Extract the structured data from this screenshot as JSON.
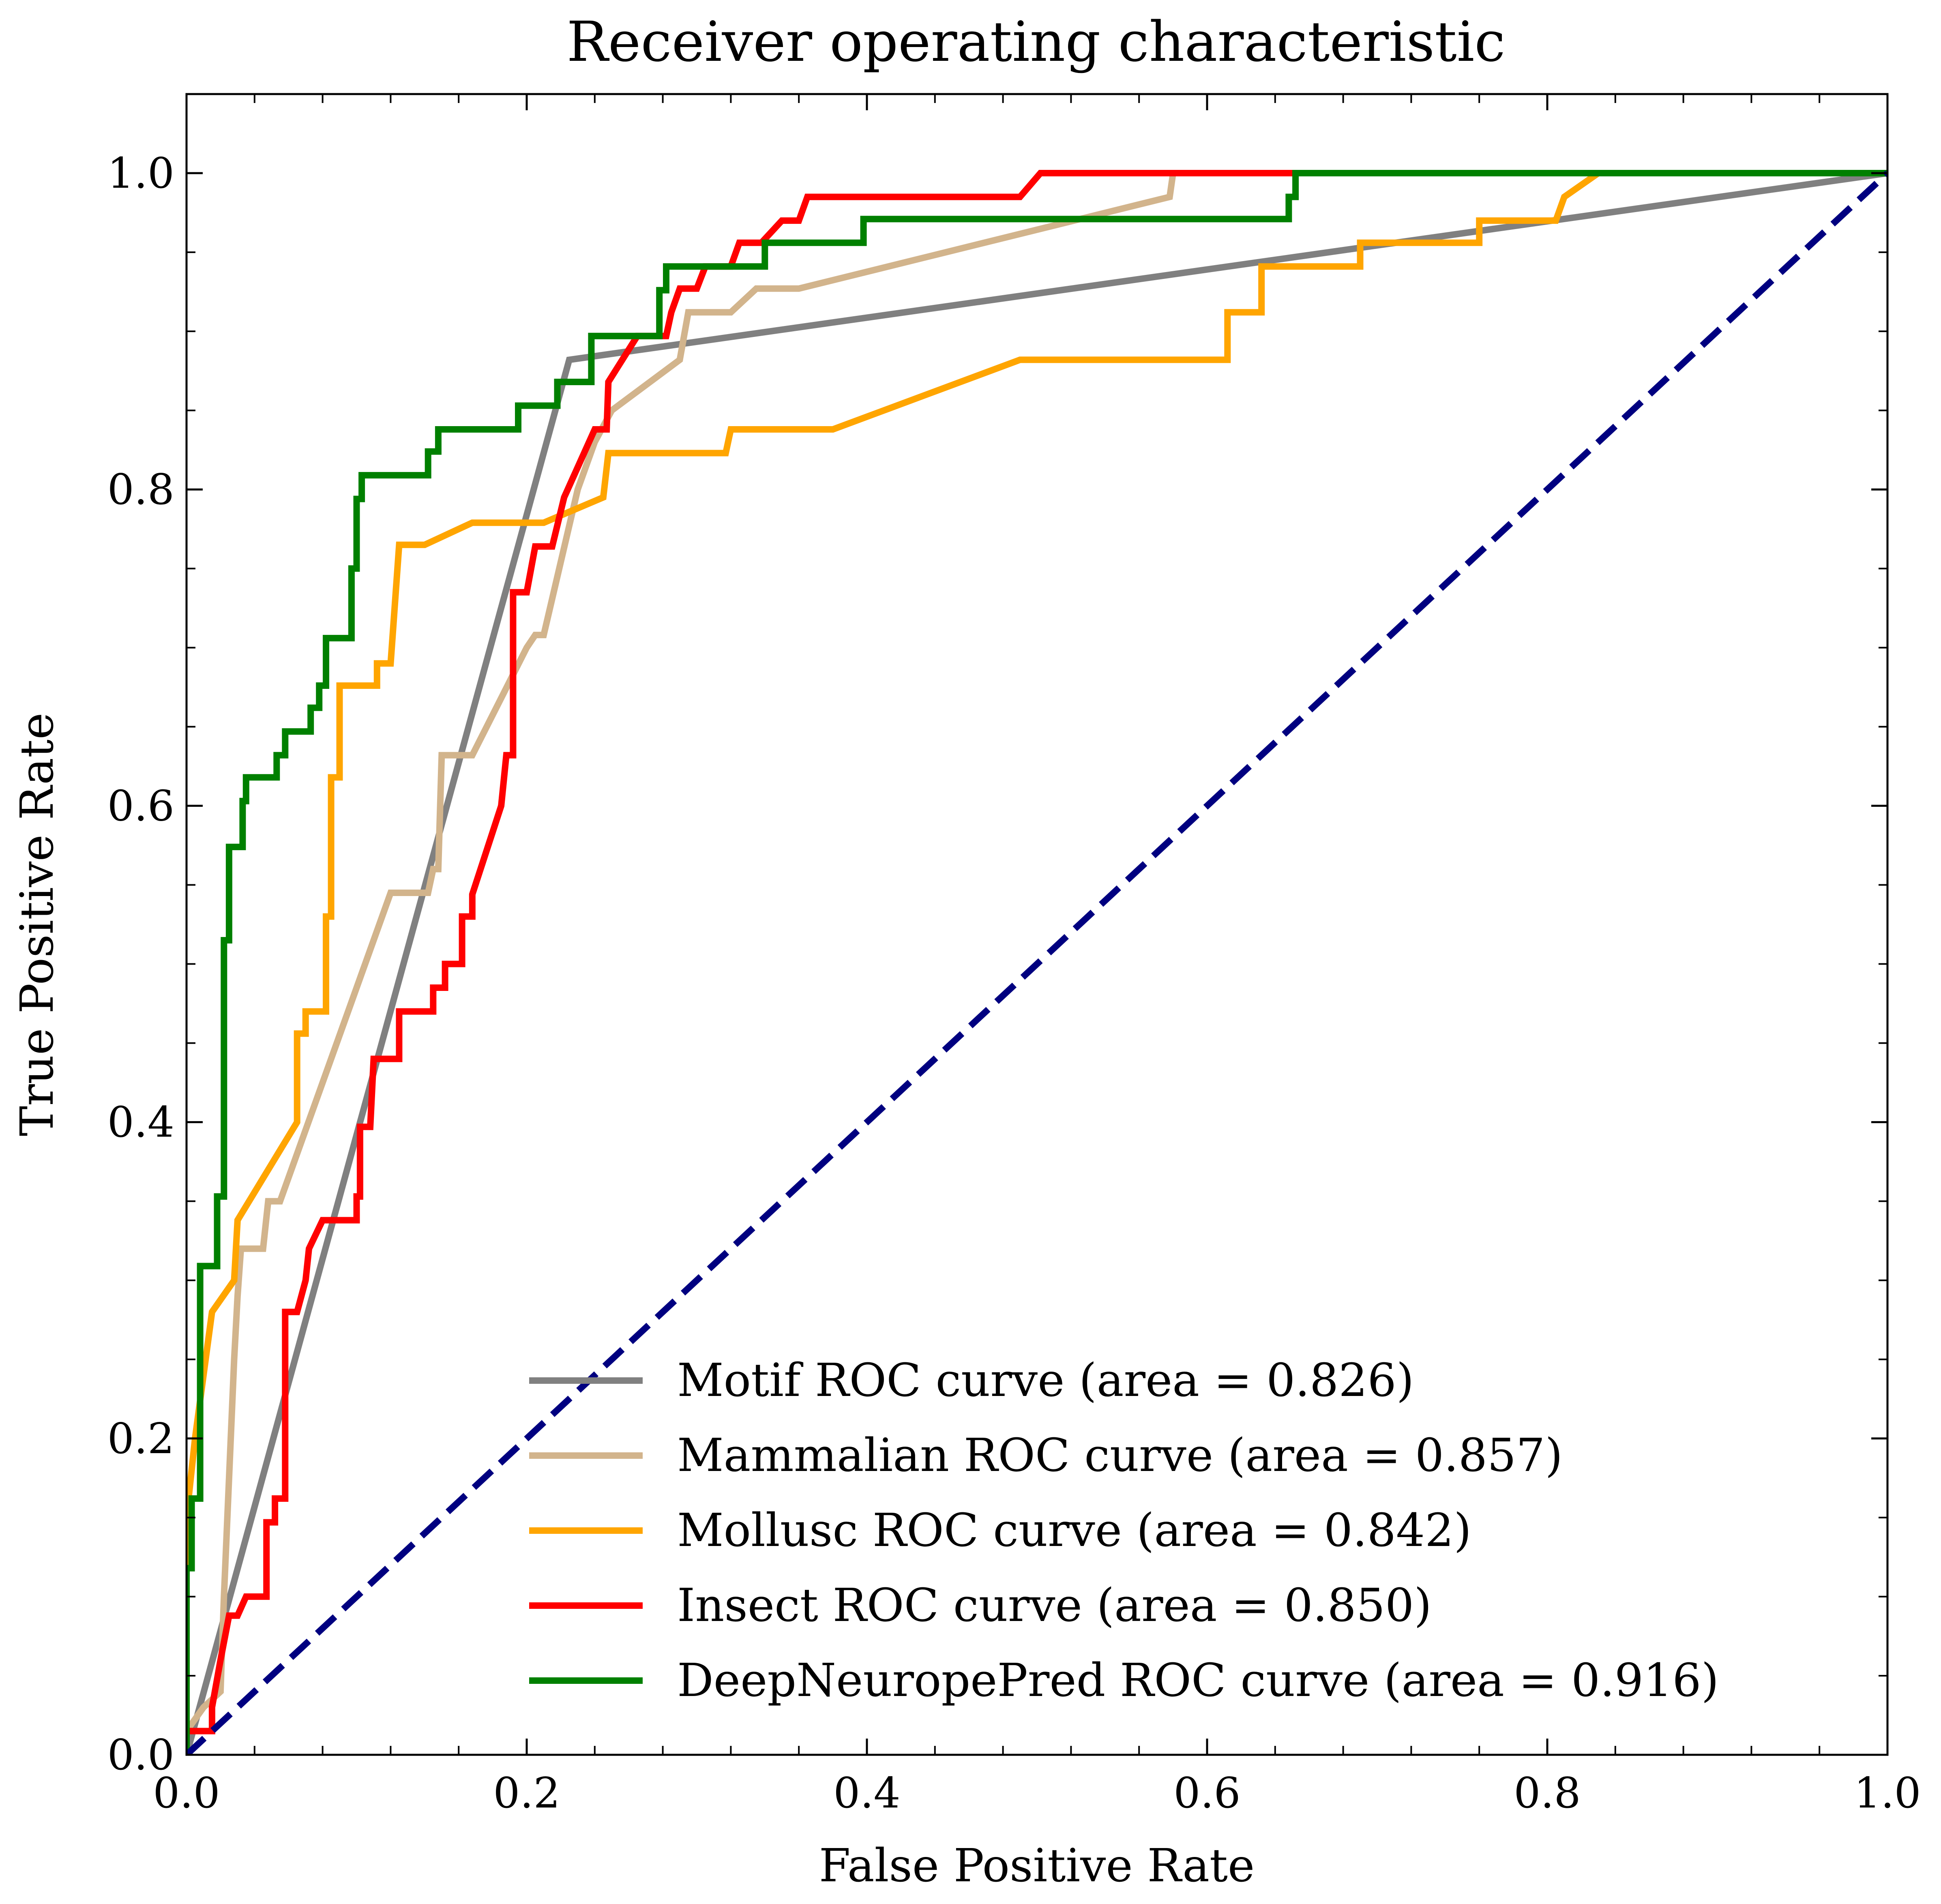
{
  "chart_data": {
    "type": "line",
    "title": "Receiver operating characteristic",
    "xlabel": "False Positive Rate",
    "ylabel": "True Positive Rate",
    "xlim": [
      0.0,
      1.0
    ],
    "ylim": [
      0.0,
      1.05
    ],
    "x_ticks": [
      0.0,
      0.2,
      0.4,
      0.6,
      0.8,
      1.0
    ],
    "y_ticks": [
      0.0,
      0.2,
      0.4,
      0.6,
      0.8,
      1.0
    ],
    "x_tick_labels": [
      "0.0",
      "0.2",
      "0.4",
      "0.6",
      "0.8",
      "1.0"
    ],
    "y_tick_labels": [
      "0.0",
      "0.2",
      "0.4",
      "0.6",
      "0.8",
      "1.0"
    ],
    "grid": false,
    "legend_position": "lower-right",
    "series": [
      {
        "name": "Motif ROC curve (area = 0.826)",
        "color": "#808080",
        "style": "solid",
        "points": [
          [
            0.0,
            0.0
          ],
          [
            0.225,
            0.882
          ],
          [
            1.0,
            1.0
          ]
        ]
      },
      {
        "name": "Mammalian ROC curve (area = 0.857)",
        "color": "#d2b48c",
        "style": "solid",
        "points": [
          [
            0.0,
            0.0
          ],
          [
            0.0,
            0.015
          ],
          [
            0.01,
            0.03
          ],
          [
            0.02,
            0.04
          ],
          [
            0.022,
            0.1
          ],
          [
            0.028,
            0.25
          ],
          [
            0.03,
            0.29
          ],
          [
            0.032,
            0.32
          ],
          [
            0.045,
            0.32
          ],
          [
            0.048,
            0.35
          ],
          [
            0.055,
            0.35
          ],
          [
            0.12,
            0.545
          ],
          [
            0.142,
            0.545
          ],
          [
            0.145,
            0.56
          ],
          [
            0.148,
            0.56
          ],
          [
            0.15,
            0.632
          ],
          [
            0.168,
            0.632
          ],
          [
            0.2,
            0.7
          ],
          [
            0.205,
            0.708
          ],
          [
            0.21,
            0.708
          ],
          [
            0.23,
            0.8
          ],
          [
            0.24,
            0.83
          ],
          [
            0.25,
            0.85
          ],
          [
            0.29,
            0.882
          ],
          [
            0.295,
            0.912
          ],
          [
            0.32,
            0.912
          ],
          [
            0.335,
            0.927
          ],
          [
            0.36,
            0.927
          ],
          [
            0.578,
            0.985
          ],
          [
            0.58,
            1.0
          ],
          [
            1.0,
            1.0
          ]
        ]
      },
      {
        "name": "Mollusc ROC curve (area = 0.842)",
        "color": "#ffa500",
        "style": "solid",
        "points": [
          [
            0.0,
            0.0
          ],
          [
            0.0,
            0.15
          ],
          [
            0.005,
            0.2
          ],
          [
            0.015,
            0.28
          ],
          [
            0.028,
            0.3
          ],
          [
            0.03,
            0.338
          ],
          [
            0.065,
            0.4
          ],
          [
            0.065,
            0.456
          ],
          [
            0.07,
            0.456
          ],
          [
            0.07,
            0.47
          ],
          [
            0.082,
            0.47
          ],
          [
            0.082,
            0.53
          ],
          [
            0.085,
            0.53
          ],
          [
            0.085,
            0.618
          ],
          [
            0.09,
            0.618
          ],
          [
            0.09,
            0.676
          ],
          [
            0.112,
            0.676
          ],
          [
            0.112,
            0.69
          ],
          [
            0.12,
            0.69
          ],
          [
            0.125,
            0.765
          ],
          [
            0.14,
            0.765
          ],
          [
            0.168,
            0.779
          ],
          [
            0.21,
            0.779
          ],
          [
            0.245,
            0.795
          ],
          [
            0.248,
            0.823
          ],
          [
            0.317,
            0.823
          ],
          [
            0.32,
            0.838
          ],
          [
            0.38,
            0.838
          ],
          [
            0.49,
            0.882
          ],
          [
            0.612,
            0.882
          ],
          [
            0.612,
            0.912
          ],
          [
            0.632,
            0.912
          ],
          [
            0.632,
            0.941
          ],
          [
            0.69,
            0.941
          ],
          [
            0.69,
            0.956
          ],
          [
            0.76,
            0.956
          ],
          [
            0.76,
            0.97
          ],
          [
            0.805,
            0.97
          ],
          [
            0.81,
            0.985
          ],
          [
            0.83,
            1.0
          ],
          [
            1.0,
            1.0
          ]
        ]
      },
      {
        "name": "Insect ROC curve (area = 0.850)",
        "color": "#ff0000",
        "style": "solid",
        "points": [
          [
            0.0,
            0.0
          ],
          [
            0.0,
            0.015
          ],
          [
            0.015,
            0.015
          ],
          [
            0.015,
            0.03
          ],
          [
            0.02,
            0.06
          ],
          [
            0.025,
            0.088
          ],
          [
            0.03,
            0.088
          ],
          [
            0.035,
            0.1
          ],
          [
            0.047,
            0.1
          ],
          [
            0.047,
            0.147
          ],
          [
            0.052,
            0.147
          ],
          [
            0.052,
            0.162
          ],
          [
            0.058,
            0.162
          ],
          [
            0.058,
            0.28
          ],
          [
            0.065,
            0.28
          ],
          [
            0.07,
            0.3
          ],
          [
            0.072,
            0.32
          ],
          [
            0.08,
            0.338
          ],
          [
            0.1,
            0.338
          ],
          [
            0.1,
            0.353
          ],
          [
            0.102,
            0.353
          ],
          [
            0.102,
            0.397
          ],
          [
            0.108,
            0.397
          ],
          [
            0.11,
            0.44
          ],
          [
            0.125,
            0.44
          ],
          [
            0.125,
            0.47
          ],
          [
            0.145,
            0.47
          ],
          [
            0.145,
            0.485
          ],
          [
            0.152,
            0.485
          ],
          [
            0.152,
            0.5
          ],
          [
            0.162,
            0.5
          ],
          [
            0.162,
            0.53
          ],
          [
            0.168,
            0.53
          ],
          [
            0.168,
            0.544
          ],
          [
            0.185,
            0.6
          ],
          [
            0.188,
            0.632
          ],
          [
            0.192,
            0.632
          ],
          [
            0.192,
            0.735
          ],
          [
            0.2,
            0.735
          ],
          [
            0.205,
            0.764
          ],
          [
            0.215,
            0.764
          ],
          [
            0.222,
            0.795
          ],
          [
            0.24,
            0.838
          ],
          [
            0.247,
            0.838
          ],
          [
            0.248,
            0.868
          ],
          [
            0.265,
            0.897
          ],
          [
            0.282,
            0.897
          ],
          [
            0.285,
            0.912
          ],
          [
            0.29,
            0.927
          ],
          [
            0.3,
            0.927
          ],
          [
            0.305,
            0.941
          ],
          [
            0.32,
            0.941
          ],
          [
            0.325,
            0.956
          ],
          [
            0.338,
            0.956
          ],
          [
            0.35,
            0.97
          ],
          [
            0.36,
            0.97
          ],
          [
            0.365,
            0.985
          ],
          [
            0.49,
            0.985
          ],
          [
            0.502,
            1.0
          ],
          [
            1.0,
            1.0
          ]
        ]
      },
      {
        "name": "DeepNeuropePred ROC curve (area = 0.916)",
        "color": "#008000",
        "style": "solid",
        "points": [
          [
            0.0,
            0.0
          ],
          [
            0.0,
            0.118
          ],
          [
            0.003,
            0.118
          ],
          [
            0.003,
            0.162
          ],
          [
            0.008,
            0.162
          ],
          [
            0.008,
            0.309
          ],
          [
            0.018,
            0.309
          ],
          [
            0.018,
            0.353
          ],
          [
            0.022,
            0.353
          ],
          [
            0.022,
            0.515
          ],
          [
            0.025,
            0.515
          ],
          [
            0.025,
            0.574
          ],
          [
            0.033,
            0.574
          ],
          [
            0.033,
            0.603
          ],
          [
            0.035,
            0.603
          ],
          [
            0.035,
            0.618
          ],
          [
            0.053,
            0.618
          ],
          [
            0.053,
            0.632
          ],
          [
            0.058,
            0.632
          ],
          [
            0.058,
            0.647
          ],
          [
            0.073,
            0.647
          ],
          [
            0.073,
            0.662
          ],
          [
            0.078,
            0.662
          ],
          [
            0.078,
            0.676
          ],
          [
            0.082,
            0.676
          ],
          [
            0.082,
            0.706
          ],
          [
            0.097,
            0.706
          ],
          [
            0.097,
            0.75
          ],
          [
            0.1,
            0.75
          ],
          [
            0.1,
            0.794
          ],
          [
            0.103,
            0.794
          ],
          [
            0.103,
            0.809
          ],
          [
            0.142,
            0.809
          ],
          [
            0.142,
            0.824
          ],
          [
            0.148,
            0.824
          ],
          [
            0.148,
            0.838
          ],
          [
            0.195,
            0.838
          ],
          [
            0.195,
            0.853
          ],
          [
            0.218,
            0.853
          ],
          [
            0.218,
            0.868
          ],
          [
            0.238,
            0.868
          ],
          [
            0.238,
            0.897
          ],
          [
            0.278,
            0.897
          ],
          [
            0.278,
            0.926
          ],
          [
            0.282,
            0.926
          ],
          [
            0.282,
            0.941
          ],
          [
            0.34,
            0.941
          ],
          [
            0.34,
            0.956
          ],
          [
            0.398,
            0.956
          ],
          [
            0.398,
            0.971
          ],
          [
            0.648,
            0.971
          ],
          [
            0.648,
            0.985
          ],
          [
            0.652,
            0.985
          ],
          [
            0.652,
            1.0
          ],
          [
            1.0,
            1.0
          ]
        ]
      },
      {
        "name": "",
        "color": "#000080",
        "style": "dashed",
        "points": [
          [
            0.0,
            0.0
          ],
          [
            1.0,
            1.0
          ]
        ]
      }
    ]
  }
}
